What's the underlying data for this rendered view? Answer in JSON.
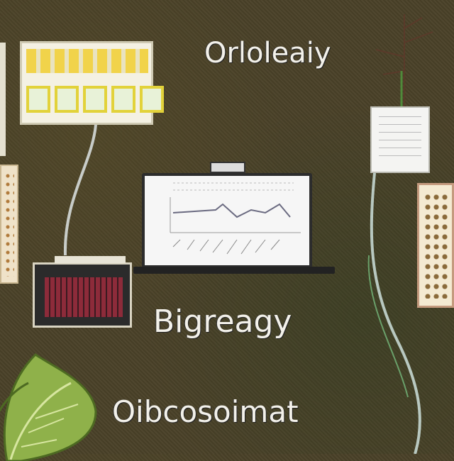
{
  "labels": {
    "top": "Orloleaiy",
    "middle": "Bigreagy",
    "bottom": "Oibcosoimat"
  },
  "colors": {
    "background": "#4a4128",
    "label_text": "#f3f1ea",
    "cable": "#c8ccc8",
    "chart_line": "#6a6a80",
    "bars": "#8d2b3a",
    "leaf": "#8fb14a"
  },
  "icons": [
    "instrument-panel",
    "laptop-line-chart",
    "bar-monitor",
    "clipboard-sheet",
    "poster",
    "leaf-plant",
    "twig"
  ]
}
